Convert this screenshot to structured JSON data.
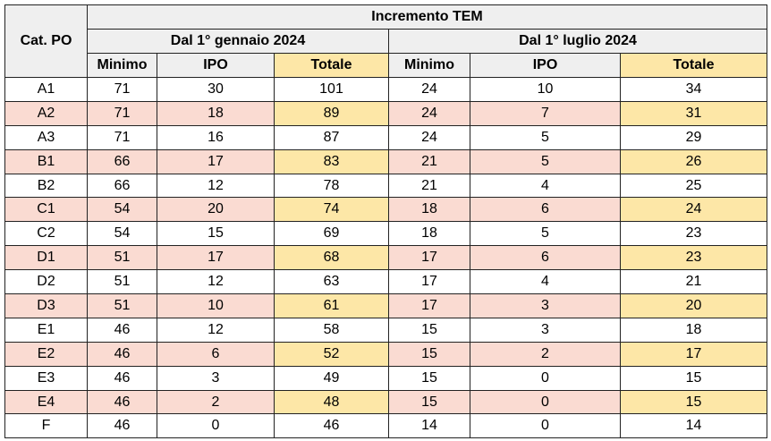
{
  "table": {
    "corner_label": "Cat. PO",
    "group_title": "Incremento TEM",
    "periods": [
      "Dal 1° gennaio 2024",
      "Dal 1° luglio 2024"
    ],
    "columns": [
      "Minimo",
      "IPO",
      "Totale",
      "Minimo",
      "IPO",
      "Totale"
    ],
    "rows": [
      {
        "cat": "A1",
        "v": [
          "71",
          "30",
          "101",
          "24",
          "10",
          "34"
        ],
        "shaded": false
      },
      {
        "cat": "A2",
        "v": [
          "71",
          "18",
          "89",
          "24",
          "7",
          "31"
        ],
        "shaded": true
      },
      {
        "cat": "A3",
        "v": [
          "71",
          "16",
          "87",
          "24",
          "5",
          "29"
        ],
        "shaded": false
      },
      {
        "cat": "B1",
        "v": [
          "66",
          "17",
          "83",
          "21",
          "5",
          "26"
        ],
        "shaded": true
      },
      {
        "cat": "B2",
        "v": [
          "66",
          "12",
          "78",
          "21",
          "4",
          "25"
        ],
        "shaded": false
      },
      {
        "cat": "C1",
        "v": [
          "54",
          "20",
          "74",
          "18",
          "6",
          "24"
        ],
        "shaded": true
      },
      {
        "cat": "C2",
        "v": [
          "54",
          "15",
          "69",
          "18",
          "5",
          "23"
        ],
        "shaded": false
      },
      {
        "cat": "D1",
        "v": [
          "51",
          "17",
          "68",
          "17",
          "6",
          "23"
        ],
        "shaded": true
      },
      {
        "cat": "D2",
        "v": [
          "51",
          "12",
          "63",
          "17",
          "4",
          "21"
        ],
        "shaded": false
      },
      {
        "cat": "D3",
        "v": [
          "51",
          "10",
          "61",
          "17",
          "3",
          "20"
        ],
        "shaded": true
      },
      {
        "cat": "E1",
        "v": [
          "46",
          "12",
          "58",
          "15",
          "3",
          "18"
        ],
        "shaded": false
      },
      {
        "cat": "E2",
        "v": [
          "46",
          "6",
          "52",
          "15",
          "2",
          "17"
        ],
        "shaded": true
      },
      {
        "cat": "E3",
        "v": [
          "46",
          "3",
          "49",
          "15",
          "0",
          "15"
        ],
        "shaded": false
      },
      {
        "cat": "E4",
        "v": [
          "46",
          "2",
          "48",
          "15",
          "0",
          "15"
        ],
        "shaded": true
      },
      {
        "cat": "F",
        "v": [
          "46",
          "0",
          "46",
          "14",
          "0",
          "14"
        ],
        "shaded": false
      }
    ],
    "colors": {
      "header_bg": "#efefef",
      "row_shade": "#fadbd2",
      "total_highlight": "#fde7a7",
      "border": "#222222"
    }
  }
}
